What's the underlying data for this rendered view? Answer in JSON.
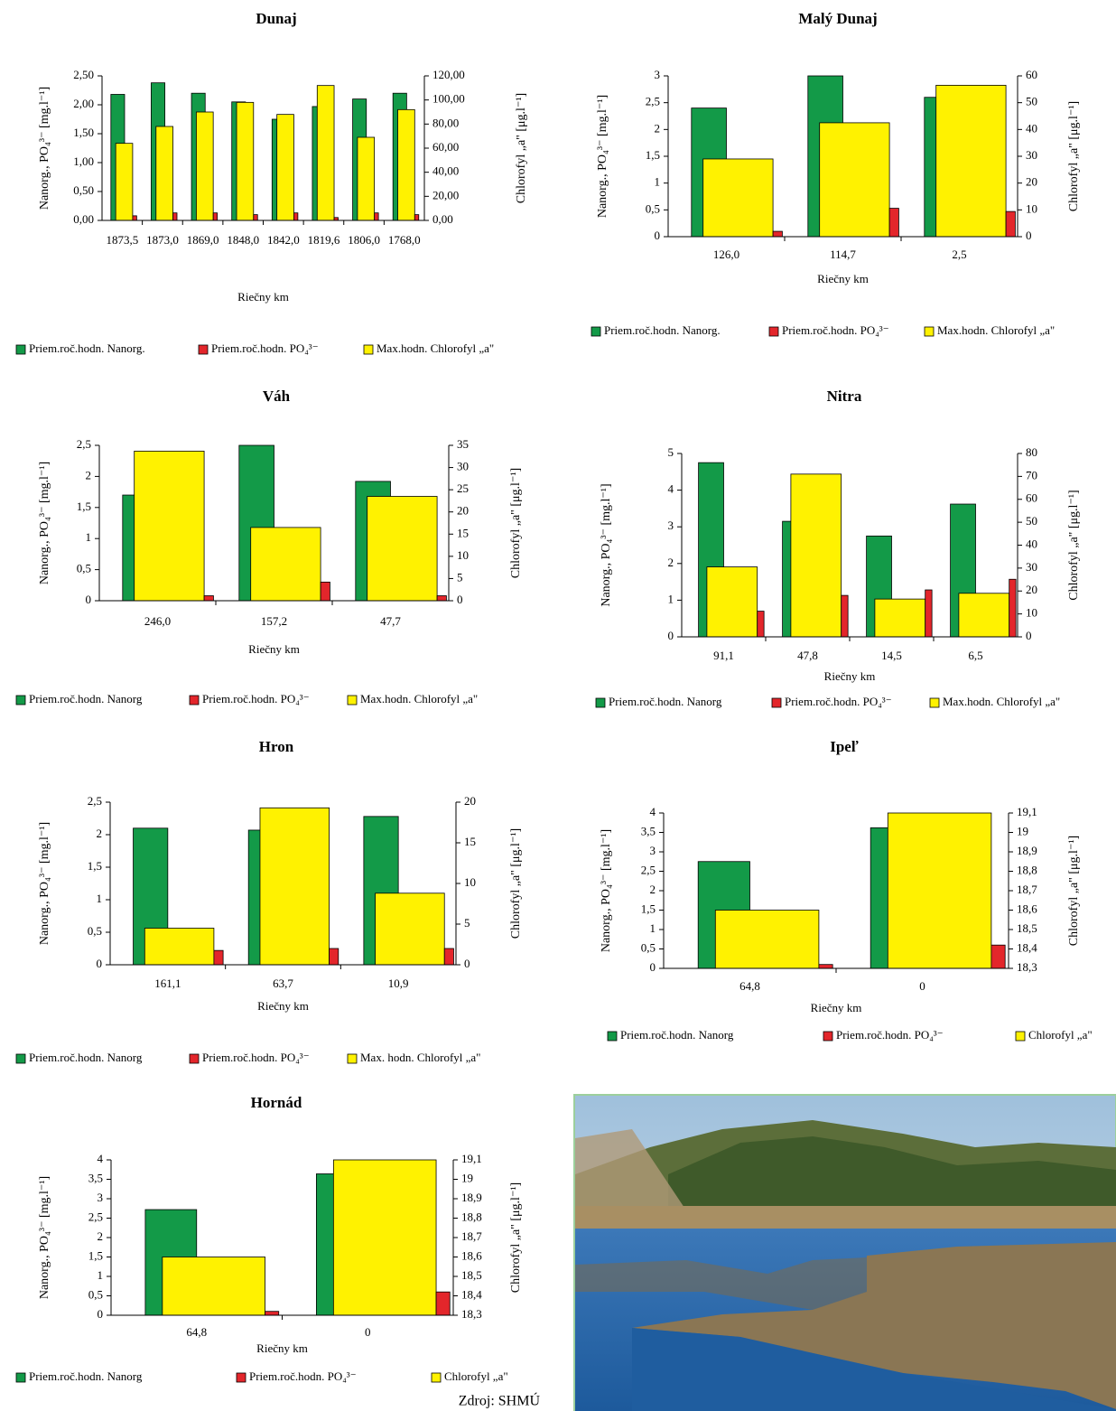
{
  "chart_data": [
    {
      "type": "bar",
      "title": "Dunaj",
      "xlabel": "Riečny km",
      "ylabel": "Nanorg., PO₄³⁻ [mg.l⁻¹]",
      "y2label": "Chlorofyl „a\" [μg.l⁻¹]",
      "categories": [
        "1873,5",
        "1873,0",
        "1869,0",
        "1848,0",
        "1842,0",
        "1819,6",
        "1806,0",
        "1768,0"
      ],
      "series": [
        {
          "name": "Priem.roč.hodn. Nanorg.",
          "color": "#139a48",
          "values": [
            2.18,
            2.38,
            2.2,
            2.05,
            1.75,
            1.97,
            2.1,
            2.2
          ]
        },
        {
          "name": "Priem.roč.hodn. PO₄³⁻",
          "color": "#e3262b",
          "values": [
            0.08,
            0.13,
            0.13,
            0.1,
            0.13,
            0.05,
            0.13,
            0.1
          ]
        },
        {
          "name": "Max.hodn. Chlorofyl „a\"",
          "color": "#fff200",
          "axis": "y2",
          "values": [
            64,
            78,
            90,
            98,
            88,
            112,
            69,
            92
          ]
        }
      ],
      "ylim": [
        0,
        2.5
      ],
      "yticks": [
        {
          "value": 0,
          "label": "0,00"
        },
        {
          "value": 0.5,
          "label": "0,50"
        },
        {
          "value": 1,
          "label": "1,00"
        },
        {
          "value": 1.5,
          "label": "1,50"
        },
        {
          "value": 2,
          "label": "2,00"
        },
        {
          "value": 2.5,
          "label": "2,50"
        }
      ],
      "y2lim": [
        0,
        120
      ],
      "y2ticks": [
        {
          "value": 0,
          "label": "0,00"
        },
        {
          "value": 20,
          "label": "20,00"
        },
        {
          "value": 40,
          "label": "40,00"
        },
        {
          "value": 60,
          "label": "60,00"
        },
        {
          "value": 80,
          "label": "80,00"
        },
        {
          "value": 100,
          "label": "100,00"
        },
        {
          "value": 120,
          "label": "120,00"
        }
      ]
    },
    {
      "type": "bar",
      "title": "Malý Dunaj",
      "xlabel": "Riečny km",
      "ylabel": "Nanorg., PO₄³⁻ [mg.l⁻¹]",
      "y2label": "Chlorofyl „a\" [μg.l⁻¹]",
      "categories": [
        "126,0",
        "114,7",
        "2,5"
      ],
      "series": [
        {
          "name": "Priem.roč.hodn. Nanorg.",
          "color": "#139a48",
          "values": [
            2.4,
            3.0,
            2.6
          ]
        },
        {
          "name": "Priem.roč.hodn. PO₄³⁻",
          "color": "#e3262b",
          "values": [
            0.1,
            0.53,
            0.47
          ]
        },
        {
          "name": "Max.hodn. Chlorofyl „a\"",
          "color": "#fff200",
          "axis": "y2",
          "values": [
            29,
            42.5,
            56.5
          ]
        }
      ],
      "ylim": [
        0,
        3
      ],
      "yticks": [
        0,
        {
          "value": 0.5,
          "label": "0,5"
        },
        1,
        {
          "value": 1.5,
          "label": "1,5"
        },
        2,
        {
          "value": 2.5,
          "label": "2,5"
        },
        3
      ],
      "y2lim": [
        0,
        60
      ],
      "y2ticks": [
        0,
        10,
        20,
        30,
        40,
        50,
        60
      ]
    },
    {
      "type": "bar",
      "title": "Váh",
      "xlabel": "Riečny km",
      "ylabel": "Nanorg., PO₄³⁻ [mg.l⁻¹]",
      "y2label": "Chlorofyl „a\" [μg.l⁻¹]",
      "categories": [
        "246,0",
        "157,2",
        "47,7"
      ],
      "series": [
        {
          "name": "Priem.roč.hodn. Nanorg",
          "color": "#139a48",
          "values": [
            1.7,
            2.5,
            1.92
          ]
        },
        {
          "name": "Priem.roč.hodn. PO₄³⁻",
          "color": "#e3262b",
          "values": [
            0.08,
            0.3,
            0.08
          ]
        },
        {
          "name": "Max.hodn. Chlorofyl „a\"",
          "color": "#fff200",
          "axis": "y2",
          "values": [
            33.7,
            16.5,
            23.5
          ]
        }
      ],
      "ylim": [
        0,
        2.5
      ],
      "yticks": [
        0,
        {
          "value": 0.5,
          "label": "0,5"
        },
        1,
        {
          "value": 1.5,
          "label": "1,5"
        },
        2,
        {
          "value": 2.5,
          "label": "2,5"
        }
      ],
      "y2lim": [
        0,
        35
      ],
      "y2ticks": [
        0,
        5,
        10,
        15,
        20,
        25,
        30,
        35
      ]
    },
    {
      "type": "bar",
      "title": "Nitra",
      "xlabel": "Riečny km",
      "ylabel": "Nanorg., PO₄³⁻ [mg.l⁻¹]",
      "y2label": "Chlorofyl „a\" [μg.l⁻¹]",
      "categories": [
        "91,1",
        "47,8",
        "14,5",
        "6,5"
      ],
      "series": [
        {
          "name": "Priem.roč.hodn. Nanorg",
          "color": "#139a48",
          "values": [
            4.75,
            3.15,
            2.75,
            3.62
          ]
        },
        {
          "name": "Priem.roč.hodn. PO₄³⁻",
          "color": "#e3262b",
          "values": [
            0.7,
            1.13,
            1.28,
            1.57
          ]
        },
        {
          "name": "Max.hodn. Chlorofyl „a\"",
          "color": "#fff200",
          "axis": "y2",
          "values": [
            30.5,
            71,
            16.5,
            19
          ]
        }
      ],
      "ylim": [
        0,
        5
      ],
      "yticks": [
        0,
        1,
        2,
        3,
        4,
        5
      ],
      "y2lim": [
        0,
        80
      ],
      "y2ticks": [
        0,
        10,
        20,
        30,
        40,
        50,
        60,
        70,
        80
      ]
    },
    {
      "type": "bar",
      "title": "Hron",
      "xlabel": "Riečny km",
      "ylabel": "Nanorg., PO₄³⁻ [mg.l⁻¹]",
      "y2label": "Chlorofyl „a\" [μg.l⁻¹]",
      "categories": [
        "161,1",
        "63,7",
        "10,9"
      ],
      "series": [
        {
          "name": "Priem.roč.hodn. Nanorg",
          "color": "#139a48",
          "values": [
            2.1,
            2.07,
            2.28
          ]
        },
        {
          "name": "Priem.roč.hodn. PO₄³⁻",
          "color": "#e3262b",
          "values": [
            0.22,
            0.25,
            0.25
          ]
        },
        {
          "name": "Max. hodn. Chlorofyl „a\"",
          "color": "#fff200",
          "axis": "y2",
          "values": [
            4.5,
            19.3,
            8.8
          ]
        }
      ],
      "ylim": [
        0,
        2.5
      ],
      "yticks": [
        0,
        {
          "value": 0.5,
          "label": "0,5"
        },
        1,
        {
          "value": 1.5,
          "label": "1,5"
        },
        2,
        {
          "value": 2.5,
          "label": "2,5"
        }
      ],
      "y2lim": [
        0,
        20
      ],
      "y2ticks": [
        0,
        5,
        10,
        15,
        20
      ]
    },
    {
      "type": "bar",
      "title": "Ipeľ",
      "xlabel": "Riečny km",
      "ylabel": "Nanorg., PO₄³⁻ [mg.l⁻¹]",
      "y2label": "Chlorofyl „a\" [μg.l⁻¹]",
      "categories": [
        "64,8",
        "0"
      ],
      "series": [
        {
          "name": "Priem.roč.hodn. Nanorg",
          "color": "#139a48",
          "values": [
            2.75,
            3.62
          ]
        },
        {
          "name": "Priem.roč.hodn. PO₄³⁻",
          "color": "#e3262b",
          "values": [
            0.1,
            0.6
          ]
        },
        {
          "name": "Chlorofyl „a\"",
          "color": "#fff200",
          "axis": "y2",
          "values": [
            18.6,
            19.1
          ]
        }
      ],
      "ylim": [
        0,
        4
      ],
      "yticks": [
        0,
        {
          "value": 0.5,
          "label": "0,5"
        },
        1,
        {
          "value": 1.5,
          "label": "1,5"
        },
        2,
        {
          "value": 2.5,
          "label": "2,5"
        },
        3,
        {
          "value": 3.5,
          "label": "3,5"
        },
        4
      ],
      "y2lim": [
        18.3,
        19.1
      ],
      "y2ticks": [
        {
          "value": 18.3,
          "label": "18,3"
        },
        {
          "value": 18.4,
          "label": "18,4"
        },
        {
          "value": 18.5,
          "label": "18,5"
        },
        {
          "value": 18.6,
          "label": "18,6"
        },
        {
          "value": 18.7,
          "label": "18,7"
        },
        {
          "value": 18.8,
          "label": "18,8"
        },
        {
          "value": 18.9,
          "label": "18,9"
        },
        19,
        {
          "value": 19.1,
          "label": "19,1"
        }
      ]
    },
    {
      "type": "bar",
      "title": "Hornád",
      "xlabel": "Riečny km",
      "ylabel": "Nanorg., PO₄³⁻ [mg.l⁻¹]",
      "y2label": "Chlorofyl „a\" [μg.l⁻¹]",
      "categories": [
        "64,8",
        "0"
      ],
      "series": [
        {
          "name": "Priem.roč.hodn. Nanorg",
          "color": "#139a48",
          "values": [
            2.72,
            3.64
          ]
        },
        {
          "name": "Priem.roč.hodn. PO₄³⁻",
          "color": "#e3262b",
          "values": [
            0.1,
            0.6
          ]
        },
        {
          "name": "Chlorofyl „a\"",
          "color": "#fff200",
          "axis": "y2",
          "values": [
            18.6,
            19.1
          ]
        }
      ],
      "ylim": [
        0,
        4
      ],
      "yticks": [
        0,
        {
          "value": 0.5,
          "label": "0,5"
        },
        1,
        {
          "value": 1.5,
          "label": "1,5"
        },
        2,
        {
          "value": 2.5,
          "label": "2,5"
        },
        3,
        {
          "value": 3.5,
          "label": "3,5"
        },
        4
      ],
      "y2lim": [
        18.3,
        19.1
      ],
      "y2ticks": [
        {
          "value": 18.3,
          "label": "18,3"
        },
        {
          "value": 18.4,
          "label": "18,4"
        },
        {
          "value": 18.5,
          "label": "18,5"
        },
        {
          "value": 18.6,
          "label": "18,6"
        },
        {
          "value": 18.7,
          "label": "18,7"
        },
        {
          "value": 18.8,
          "label": "18,8"
        },
        {
          "value": 18.9,
          "label": "18,9"
        },
        19,
        {
          "value": 19.1,
          "label": "19,1"
        }
      ]
    }
  ],
  "source": "Zdroj: SHMÚ"
}
